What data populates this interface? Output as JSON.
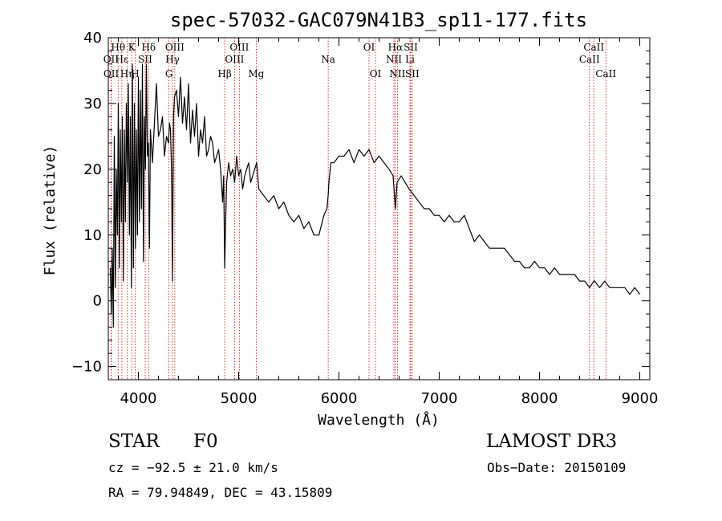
{
  "chart_data": {
    "type": "line",
    "title": "spec-57032-GAC079N41B3_sp11-177.fits",
    "xlabel": "Wavelength (Å)",
    "ylabel": "Flux (relative)",
    "xlim": [
      3700,
      9100
    ],
    "ylim": [
      -12,
      40
    ],
    "xticks": [
      4000,
      5000,
      6000,
      7000,
      8000,
      9000
    ],
    "yticks": [
      -10,
      0,
      10,
      20,
      30,
      40
    ],
    "line_color": "#000000",
    "marker_color": "#cc0000",
    "series": [
      {
        "name": "flux",
        "x": [
          3720,
          3730,
          3740,
          3750,
          3760,
          3770,
          3780,
          3790,
          3800,
          3810,
          3820,
          3830,
          3840,
          3850,
          3860,
          3870,
          3880,
          3890,
          3900,
          3910,
          3920,
          3930,
          3940,
          3950,
          3960,
          3970,
          3980,
          3990,
          4000,
          4010,
          4020,
          4030,
          4040,
          4050,
          4060,
          4070,
          4080,
          4090,
          4100,
          4110,
          4120,
          4140,
          4160,
          4180,
          4200,
          4220,
          4240,
          4260,
          4280,
          4300,
          4310,
          4320,
          4330,
          4340,
          4350,
          4360,
          4380,
          4400,
          4420,
          4440,
          4460,
          4480,
          4500,
          4520,
          4540,
          4560,
          4580,
          4600,
          4620,
          4640,
          4660,
          4680,
          4700,
          4720,
          4740,
          4760,
          4780,
          4800,
          4820,
          4840,
          4850,
          4861,
          4870,
          4880,
          4900,
          4920,
          4940,
          4960,
          4980,
          5000,
          5020,
          5040,
          5060,
          5080,
          5100,
          5120,
          5140,
          5160,
          5180,
          5200,
          5250,
          5300,
          5350,
          5400,
          5450,
          5500,
          5550,
          5600,
          5650,
          5700,
          5750,
          5800,
          5850,
          5880,
          5893,
          5900,
          5920,
          5950,
          6000,
          6050,
          6100,
          6150,
          6200,
          6250,
          6300,
          6350,
          6400,
          6450,
          6500,
          6540,
          6563,
          6580,
          6620,
          6660,
          6700,
          6750,
          6800,
          6850,
          6900,
          6950,
          7000,
          7050,
          7100,
          7150,
          7200,
          7250,
          7300,
          7350,
          7400,
          7450,
          7500,
          7550,
          7600,
          7650,
          7700,
          7750,
          7800,
          7850,
          7900,
          7950,
          8000,
          8050,
          8100,
          8150,
          8200,
          8250,
          8300,
          8350,
          8400,
          8450,
          8500,
          8542,
          8550,
          8600,
          8650,
          8700,
          8750,
          8800,
          8850,
          8900,
          8950,
          9000
        ],
        "y": [
          5,
          -2,
          8,
          -4,
          25,
          2,
          20,
          10,
          30,
          5,
          26,
          12,
          28,
          3,
          26,
          12,
          30,
          18,
          33,
          10,
          28,
          2,
          36,
          5,
          30,
          8,
          26,
          10,
          34,
          12,
          32,
          14,
          36,
          6,
          28,
          20,
          36,
          22,
          24,
          8,
          26,
          21,
          27,
          33,
          25,
          26,
          28,
          22,
          25,
          24,
          27,
          26,
          20,
          3,
          28,
          31,
          32,
          28,
          34,
          27,
          31,
          26,
          33,
          24,
          29,
          25,
          30,
          22,
          26,
          24,
          28,
          22,
          23,
          25,
          24,
          21,
          22,
          23,
          20,
          15,
          19,
          5,
          12,
          18,
          21,
          19,
          20,
          18,
          22,
          19,
          20,
          17,
          19,
          20,
          21,
          18,
          19,
          20,
          21,
          17,
          16,
          15,
          16,
          14,
          15,
          13,
          12,
          13,
          11,
          12,
          10,
          10,
          13,
          14,
          16,
          18,
          21,
          21,
          22,
          22,
          23,
          21,
          23,
          22,
          23,
          21,
          22,
          21,
          20,
          19,
          14,
          18,
          19,
          18,
          17,
          16,
          15,
          14,
          14,
          13,
          13,
          12,
          13,
          12,
          12,
          13,
          11,
          9,
          10,
          9,
          8,
          8,
          8,
          8,
          7,
          6,
          6,
          5,
          5,
          6,
          5,
          5,
          4,
          5,
          4,
          4,
          4,
          4,
          3,
          3,
          2,
          3,
          3,
          2,
          3,
          2,
          2,
          2,
          2,
          1,
          2,
          1
        ]
      }
    ],
    "lines": [
      {
        "label": "OII",
        "x": 3727,
        "row": 2
      },
      {
        "label": "OII",
        "x": 3729,
        "row": 3
      },
      {
        "label": "Hθ",
        "x": 3798,
        "row": 1
      },
      {
        "label": "Hε",
        "x": 3835,
        "row": 2
      },
      {
        "label": "Hη",
        "x": 3889,
        "row": 3
      },
      {
        "label": "K",
        "x": 3934,
        "row": 1
      },
      {
        "label": "H",
        "x": 3968,
        "row": 3
      },
      {
        "label": "SII",
        "x": 4068,
        "row": 2
      },
      {
        "label": "Hδ",
        "x": 4102,
        "row": 1
      },
      {
        "label": "OIII",
        "x": 4363,
        "row": 1
      },
      {
        "label": "Hγ",
        "x": 4340,
        "row": 2
      },
      {
        "label": "G",
        "x": 4305,
        "row": 3
      },
      {
        "label": "Hβ",
        "x": 4861,
        "row": 3
      },
      {
        "label": "OIII",
        "x": 5007,
        "row": 1
      },
      {
        "label": "OIII",
        "x": 4959,
        "row": 2
      },
      {
        "label": "Mg",
        "x": 5175,
        "row": 3
      },
      {
        "label": "Na",
        "x": 5893,
        "row": 2
      },
      {
        "label": "OI",
        "x": 6300,
        "row": 1
      },
      {
        "label": "OI",
        "x": 6364,
        "row": 3
      },
      {
        "label": "Hα",
        "x": 6563,
        "row": 1
      },
      {
        "label": "NII",
        "x": 6548,
        "row": 2
      },
      {
        "label": "NII",
        "x": 6583,
        "row": 3
      },
      {
        "label": "SII",
        "x": 6716,
        "row": 1
      },
      {
        "label": "Li",
        "x": 6708,
        "row": 2
      },
      {
        "label": "SII",
        "x": 6731,
        "row": 3
      },
      {
        "label": "CaII",
        "x": 8542,
        "row": 1
      },
      {
        "label": "CaII",
        "x": 8498,
        "row": 2
      },
      {
        "label": "CaII",
        "x": 8662,
        "row": 3
      }
    ]
  },
  "info": {
    "object_class": "STAR",
    "subclass": "F0",
    "survey": "LAMOST DR3",
    "cz": "cz = −92.5 ± 21.0 km/s",
    "obs_date": "Obs−Date: 20150109",
    "coords": "RA =  79.94849, DEC =  43.15809"
  }
}
